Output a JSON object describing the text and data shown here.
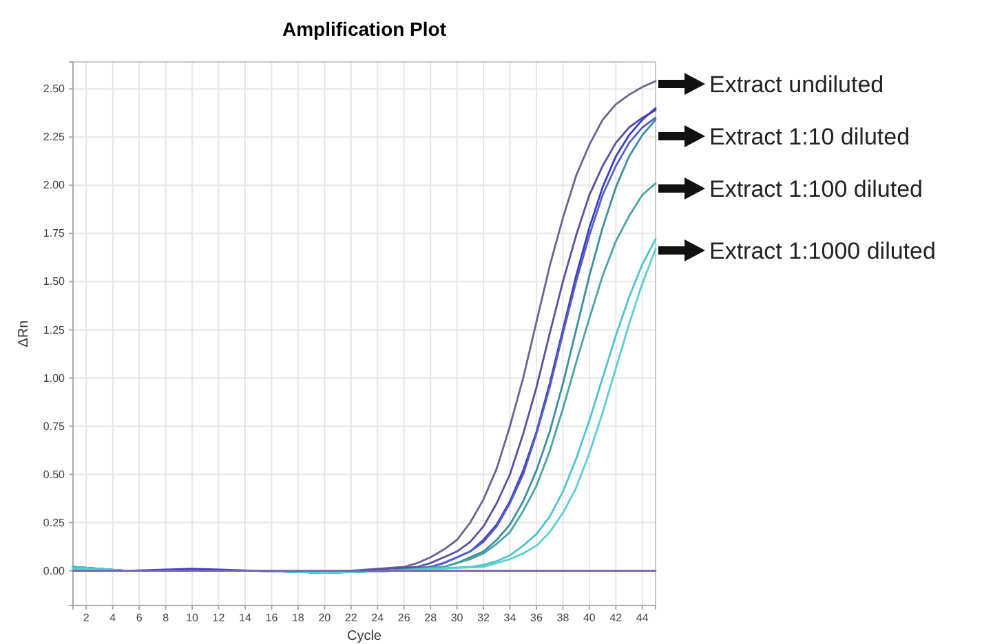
{
  "chart_data": {
    "type": "line",
    "title": "Amplification Plot",
    "xlabel": "Cycle",
    "ylabel": "ΔRn",
    "xlim": [
      1,
      45
    ],
    "ylim": [
      -0.18,
      2.64
    ],
    "xticks": [
      2,
      4,
      6,
      8,
      10,
      12,
      14,
      16,
      18,
      20,
      22,
      24,
      26,
      28,
      30,
      32,
      34,
      36,
      38,
      40,
      42,
      44
    ],
    "yticks": [
      {
        "value": 0,
        "label": "0.00"
      },
      {
        "value": 0.25,
        "label": "0.25"
      },
      {
        "value": 0.5,
        "label": "0.50"
      },
      {
        "value": 0.75,
        "label": "0.75"
      },
      {
        "value": 1,
        "label": "1.00"
      },
      {
        "value": 1.25,
        "label": "1.25"
      },
      {
        "value": 1.5,
        "label": "1.50"
      },
      {
        "value": 1.75,
        "label": "1.75"
      },
      {
        "value": 2,
        "label": "2.00"
      },
      {
        "value": 2.25,
        "label": "2.25"
      },
      {
        "value": 2.5,
        "label": "2.50"
      }
    ],
    "grid": true,
    "marker": "none",
    "line_style": "solid",
    "series": [
      {
        "color": "#6b6391",
        "x": [
          1,
          5,
          10,
          15,
          20,
          26,
          27,
          28,
          29,
          30,
          31,
          32,
          33,
          34,
          35,
          36,
          37,
          38,
          39,
          40,
          41,
          42,
          43,
          44,
          45
        ],
        "values": [
          0.02,
          0,
          0,
          0,
          -0.01,
          0.02,
          0.04,
          0.07,
          0.11,
          0.16,
          0.25,
          0.37,
          0.53,
          0.75,
          1.0,
          1.29,
          1.58,
          1.83,
          2.05,
          2.21,
          2.34,
          2.42,
          2.47,
          2.51,
          2.54
        ]
      },
      {
        "color": "#5b4f9e",
        "x": [
          1,
          5,
          10,
          15,
          20,
          27,
          28,
          29,
          30,
          31,
          32,
          33,
          34,
          35,
          36,
          37,
          38,
          39,
          40,
          41,
          42,
          43,
          44,
          45
        ],
        "values": [
          0.01,
          0,
          0,
          0,
          -0.01,
          0.02,
          0.04,
          0.07,
          0.1,
          0.15,
          0.23,
          0.35,
          0.5,
          0.71,
          0.95,
          1.23,
          1.5,
          1.74,
          1.95,
          2.1,
          2.22,
          2.3,
          2.35,
          2.39
        ]
      },
      {
        "color": "#3b3dbf",
        "x": [
          1,
          5,
          10,
          15,
          20,
          25,
          28,
          29,
          30,
          31,
          32,
          33,
          34,
          35,
          36,
          37,
          38,
          39,
          40,
          41,
          42,
          43,
          44,
          45
        ],
        "values": [
          0.02,
          0,
          0.01,
          0,
          -0.01,
          0,
          0.02,
          0.04,
          0.07,
          0.1,
          0.16,
          0.24,
          0.36,
          0.52,
          0.72,
          0.97,
          1.25,
          1.53,
          1.78,
          1.99,
          2.15,
          2.26,
          2.34,
          2.4
        ]
      },
      {
        "color": "#5560c8",
        "x": [
          1,
          5,
          10,
          15,
          20,
          25,
          28,
          29,
          30,
          31,
          32,
          33,
          34,
          35,
          36,
          37,
          38,
          39,
          40,
          41,
          42,
          43,
          44,
          45
        ],
        "values": [
          0.01,
          0,
          0,
          0,
          -0.01,
          0,
          0.02,
          0.04,
          0.07,
          0.1,
          0.15,
          0.23,
          0.35,
          0.5,
          0.71,
          0.95,
          1.23,
          1.5,
          1.74,
          1.95,
          2.1,
          2.22,
          2.3,
          2.35
        ]
      },
      {
        "color": "#3a8f9f",
        "x": [
          1,
          5,
          10,
          15,
          20,
          25,
          29,
          30,
          31,
          32,
          33,
          34,
          35,
          36,
          37,
          38,
          39,
          40,
          41,
          42,
          43,
          44,
          45
        ],
        "values": [
          0.02,
          0,
          0,
          0,
          -0.01,
          0,
          0.02,
          0.04,
          0.07,
          0.1,
          0.16,
          0.24,
          0.36,
          0.52,
          0.72,
          0.97,
          1.25,
          1.53,
          1.78,
          1.99,
          2.15,
          2.26,
          2.34
        ]
      },
      {
        "color": "#4aa3a3",
        "x": [
          1,
          5,
          10,
          15,
          20,
          25,
          29,
          30,
          31,
          32,
          33,
          34,
          35,
          36,
          37,
          38,
          39,
          40,
          41,
          42,
          43,
          44,
          45
        ],
        "values": [
          0.01,
          0,
          0,
          0,
          -0.01,
          0,
          0.02,
          0.04,
          0.06,
          0.09,
          0.14,
          0.2,
          0.31,
          0.44,
          0.62,
          0.84,
          1.08,
          1.31,
          1.53,
          1.71,
          1.84,
          1.95,
          2.01
        ]
      },
      {
        "color": "#4fc4cc",
        "x": [
          1,
          5,
          10,
          15,
          20,
          25,
          31,
          32,
          33,
          34,
          35,
          36,
          37,
          38,
          39,
          40,
          41,
          42,
          43,
          44,
          45
        ],
        "values": [
          0.02,
          0,
          0,
          0,
          -0.01,
          0,
          0.02,
          0.03,
          0.05,
          0.08,
          0.13,
          0.19,
          0.28,
          0.41,
          0.58,
          0.78,
          1.0,
          1.22,
          1.42,
          1.59,
          1.72
        ]
      },
      {
        "color": "#5ccfd0",
        "x": [
          1,
          5,
          10,
          15,
          20,
          25,
          32,
          33,
          34,
          35,
          36,
          37,
          38,
          39,
          40,
          41,
          42,
          43,
          44,
          45
        ],
        "values": [
          0.01,
          0,
          0,
          0,
          -0.01,
          0,
          0.02,
          0.04,
          0.06,
          0.09,
          0.13,
          0.2,
          0.3,
          0.43,
          0.61,
          0.82,
          1.05,
          1.28,
          1.49,
          1.67
        ]
      },
      {
        "color": "#7a5fb0",
        "x": [
          1,
          45
        ],
        "values": [
          0,
          0
        ]
      }
    ],
    "annotations": [
      "Extract undiluted",
      "Extract 1:10 diluted",
      "Extract 1:100 diluted",
      "Extract 1:1000 diluted"
    ]
  }
}
